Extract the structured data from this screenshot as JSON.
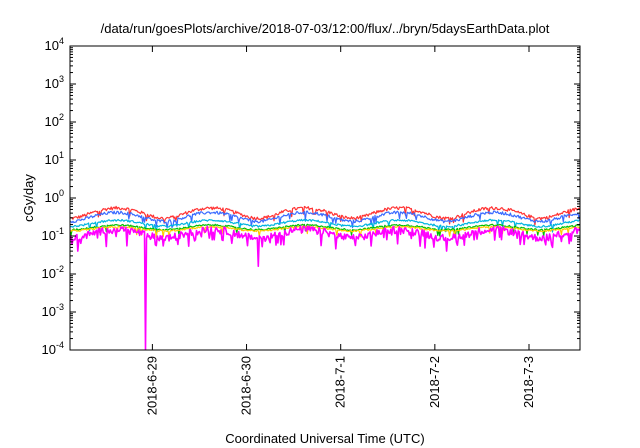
{
  "chart_data": {
    "type": "line",
    "title": "/data/run/goesPlots/archive/2018-07-03/12:00/flux/../bryn/5daysEarthData.plot",
    "xlabel": "Coordinated Universal Time (UTC)",
    "ylabel": "cGy/day",
    "yscale": "log",
    "ylim": [
      0.0001,
      10000
    ],
    "xlim": [
      "2018-06-28 03:00",
      "2018-07-03 13:00"
    ],
    "grid": false,
    "x_ticks": [
      {
        "label": "2018-6-29",
        "value": "2018-06-29 00:00"
      },
      {
        "label": "2018-6-30",
        "value": "2018-06-30 00:00"
      },
      {
        "label": "2018-7-1",
        "value": "2018-07-01 00:00"
      },
      {
        "label": "2018-7-2",
        "value": "2018-07-02 00:00"
      },
      {
        "label": "2018-7-3",
        "value": "2018-07-03 00:00"
      }
    ],
    "y_ticks": [
      {
        "base": "10",
        "exp": "-4",
        "value": 0.0001
      },
      {
        "base": "10",
        "exp": "-3",
        "value": 0.001
      },
      {
        "base": "10",
        "exp": "-2",
        "value": 0.01
      },
      {
        "base": "10",
        "exp": "-1",
        "value": 0.1
      },
      {
        "base": "10",
        "exp": "0",
        "value": 1
      },
      {
        "base": "10",
        "exp": "1",
        "value": 10
      },
      {
        "base": "10",
        "exp": "2",
        "value": 100
      },
      {
        "base": "10",
        "exp": "3",
        "value": 1000
      },
      {
        "base": "10",
        "exp": "4",
        "value": 10000
      }
    ],
    "series": [
      {
        "color": "#ff3333",
        "level": 0.42,
        "amp": 0.3,
        "noise": 0.1
      },
      {
        "color": "#3a6bff",
        "level": 0.33,
        "amp": 0.26,
        "noise": 0.09
      },
      {
        "color": "#00b4e0",
        "level": 0.22,
        "amp": 0.18,
        "noise": 0.06
      },
      {
        "color": "#00c000",
        "level": 0.17,
        "amp": 0.14,
        "noise": 0.05
      },
      {
        "color": "#ffcc00",
        "level": 0.155,
        "amp": 0.12,
        "noise": 0.05
      },
      {
        "color": "#ff00ff",
        "level": 0.12,
        "amp": 0.25,
        "noise": 0.22
      }
    ],
    "dips": [
      {
        "x": "2018-06-28 22:15",
        "min": 0.0001
      },
      {
        "x": "2018-06-30 03:00",
        "min": 0.016
      },
      {
        "x": "2018-06-28 05:00",
        "min": 0.04
      },
      {
        "x": "2018-07-02 03:00",
        "min": 0.04
      },
      {
        "x": "2018-07-03 06:00",
        "min": 0.05
      }
    ]
  }
}
